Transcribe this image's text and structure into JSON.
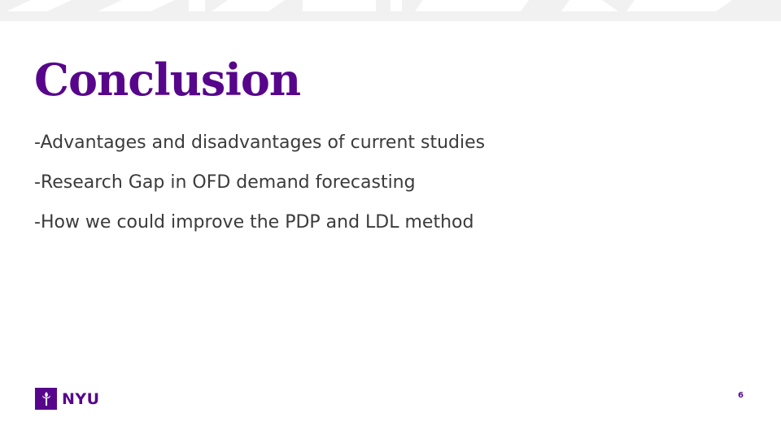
{
  "slide": {
    "title": "Conclusion",
    "bullets": [
      "-Advantages and disadvantages of current studies",
      "-Research Gap in OFD demand forecasting",
      "-How we could improve the PDP and LDL method"
    ],
    "logo_text": "NYU",
    "page_number": "6"
  },
  "colors": {
    "brand_purple": "#57068c",
    "body_text": "#3b3b3b",
    "top_band": "#efefef"
  },
  "icons": {
    "logo_mark": "torch-icon"
  }
}
